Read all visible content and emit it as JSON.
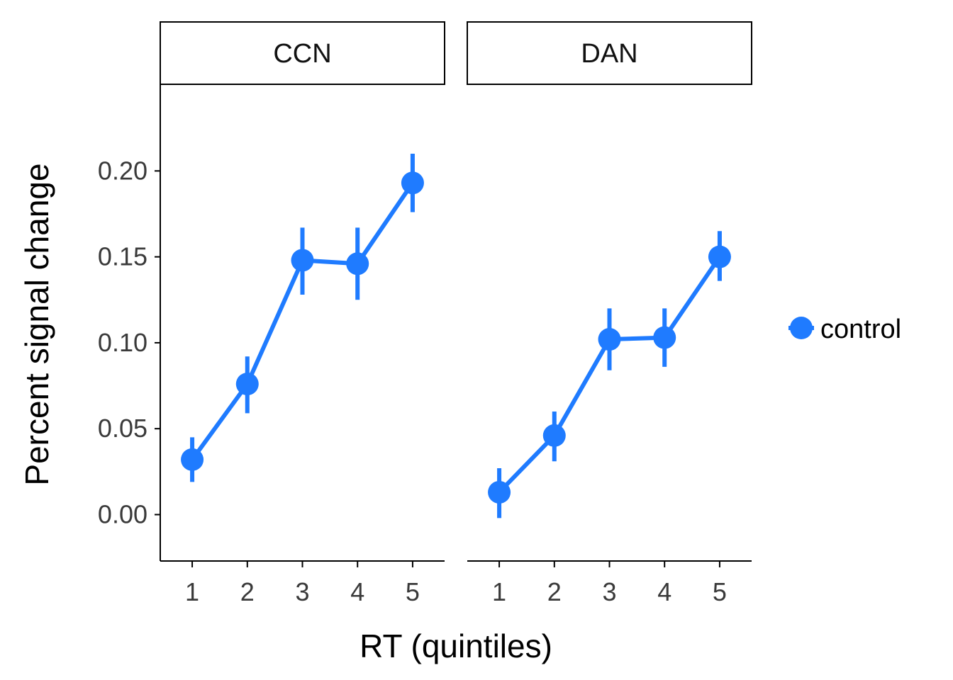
{
  "chart_data": {
    "type": "line",
    "xlabel": "RT (quintiles)",
    "ylabel": "Percent signal change",
    "x": [
      1,
      2,
      3,
      4,
      5
    ],
    "ylim": [
      -0.027,
      0.25
    ],
    "yticks": [
      "0.00",
      "0.05",
      "0.10",
      "0.15",
      "0.20"
    ],
    "grid": false,
    "legend_position": "right",
    "series_color": "#1f7bff",
    "series_name": "control",
    "panels": [
      {
        "name": "CCN",
        "series": [
          {
            "name": "control",
            "values": [
              0.032,
              0.076,
              0.148,
              0.146,
              0.193
            ],
            "error_low": [
              0.019,
              0.059,
              0.128,
              0.125,
              0.176
            ],
            "error_high": [
              0.045,
              0.092,
              0.167,
              0.167,
              0.21
            ]
          }
        ]
      },
      {
        "name": "DAN",
        "series": [
          {
            "name": "control",
            "values": [
              0.013,
              0.046,
              0.102,
              0.103,
              0.15
            ],
            "error_low": [
              -0.002,
              0.031,
              0.084,
              0.086,
              0.136
            ],
            "error_high": [
              0.027,
              0.06,
              0.12,
              0.12,
              0.165
            ]
          }
        ]
      }
    ]
  }
}
